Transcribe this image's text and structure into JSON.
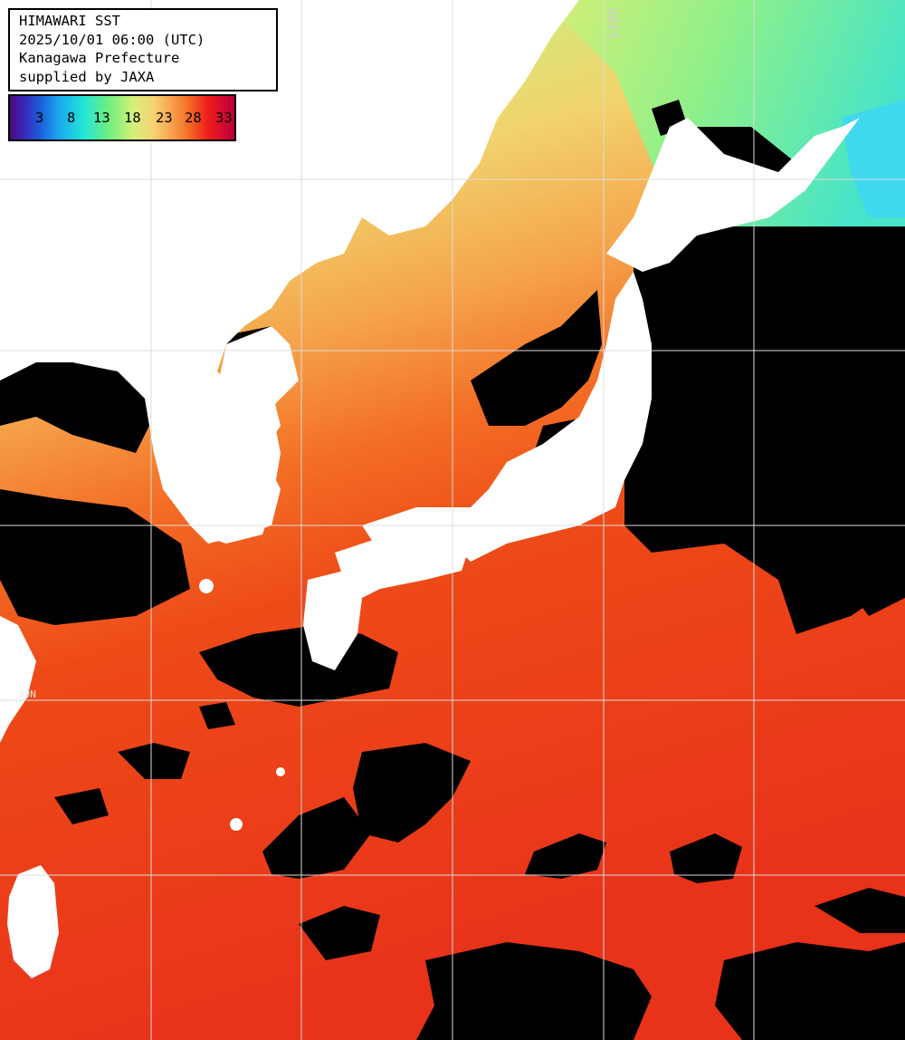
{
  "header": {
    "title": "HIMAWARI SST",
    "datetime": "2025/10/01 06:00 (UTC)",
    "region": "Kanagawa Prefecture",
    "credit": "supplied by JAXA"
  },
  "legend": {
    "labels": [
      "3",
      "8",
      "13",
      "18",
      "23",
      "28",
      "33"
    ],
    "colors": [
      "#4b0b74",
      "#1d5ad8",
      "#22e6d6",
      "#6fef7c",
      "#f7d272",
      "#f36a23",
      "#b8003a"
    ]
  },
  "grid": {
    "lon_label": "140E",
    "lat_label": "30N",
    "color": "#dcdcdc"
  },
  "colors": {
    "land": "#ffffff",
    "no_data": "#000000",
    "warm_sea": "#ee3b16",
    "mid_sea": "#f5a048",
    "cool_sea": "#cdf07a",
    "cold_sea": "#5fe7c0"
  }
}
